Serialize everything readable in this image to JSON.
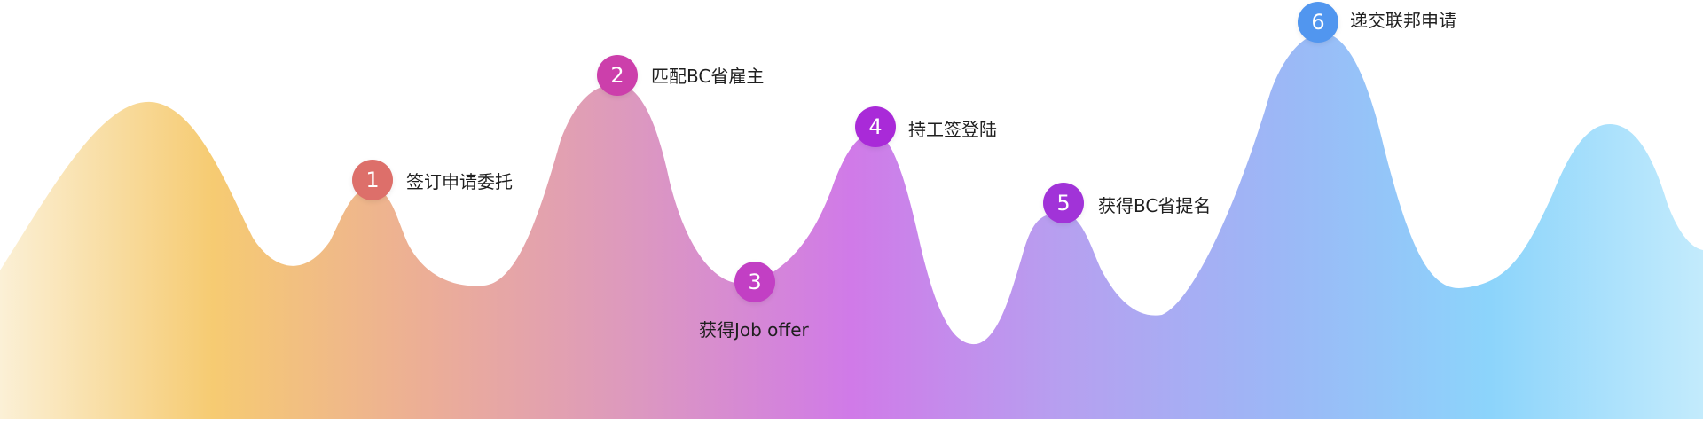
{
  "colors": {
    "gradient_stops": [
      "#fbf0d6",
      "#f6cb72",
      "#ecae96",
      "#dc98c0",
      "#d07ae8",
      "#b6a0f0",
      "#9cb7f6",
      "#8cd4fb",
      "#c3ebfc"
    ],
    "badge_1": "#dd6f6a",
    "badge_2": "#cc3fab",
    "badge_3": "#c23fc4",
    "badge_4": "#a92ad8",
    "badge_5": "#a133d8",
    "badge_6": "#5196ef"
  },
  "steps": [
    {
      "number": "1",
      "label": "签订申请委托"
    },
    {
      "number": "2",
      "label": "匹配BC省雇主"
    },
    {
      "number": "3",
      "label": "获得Job offer"
    },
    {
      "number": "4",
      "label": "持工签登陆"
    },
    {
      "number": "5",
      "label": "获得BC省提名"
    },
    {
      "number": "6",
      "label": "递交联邦申请"
    }
  ]
}
